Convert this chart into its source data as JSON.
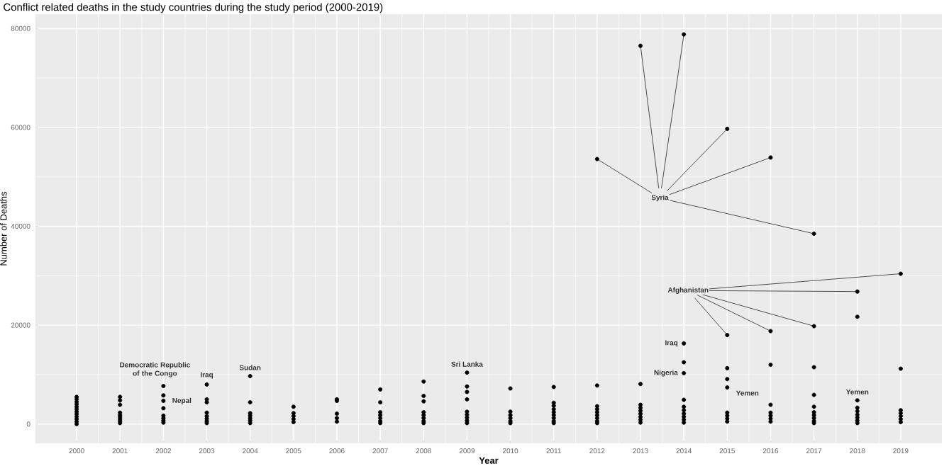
{
  "chart_data": {
    "type": "scatter",
    "title": "Conflict related deaths in the study countries during the study period (2000-2019)",
    "xlabel": "Year",
    "ylabel": "Number of Deaths",
    "xlim": [
      1999.05,
      2019.95
    ],
    "ylim": [
      -3900,
      82900
    ],
    "xticks": [
      2000,
      2001,
      2002,
      2003,
      2004,
      2005,
      2006,
      2007,
      2008,
      2009,
      2010,
      2011,
      2012,
      2013,
      2014,
      2015,
      2016,
      2017,
      2018,
      2019
    ],
    "yticks": [
      0,
      20000,
      40000,
      60000,
      80000
    ],
    "grid": true,
    "marker": "circle",
    "series": [
      {
        "color": "#000000",
        "x": [
          2000,
          2000,
          2000,
          2000,
          2000,
          2000,
          2000,
          2000,
          2000,
          2000,
          2000,
          2000,
          2001,
          2001,
          2001,
          2001,
          2001,
          2001,
          2001,
          2001,
          2001,
          2002,
          2002,
          2002,
          2002,
          2002,
          2002,
          2002,
          2002,
          2003,
          2003,
          2003,
          2003,
          2003,
          2003,
          2003,
          2003,
          2004,
          2004,
          2004,
          2004,
          2004,
          2004,
          2004,
          2005,
          2005,
          2005,
          2005,
          2005,
          2006,
          2006,
          2006,
          2006,
          2006,
          2007,
          2007,
          2007,
          2007,
          2007,
          2007,
          2007,
          2008,
          2008,
          2008,
          2008,
          2008,
          2008,
          2008,
          2008,
          2009,
          2009,
          2009,
          2009,
          2009,
          2009,
          2009,
          2009,
          2009,
          2010,
          2010,
          2010,
          2010,
          2010,
          2010,
          2011,
          2011,
          2011,
          2011,
          2011,
          2011,
          2011,
          2011,
          2011,
          2012,
          2012,
          2012,
          2012,
          2012,
          2012,
          2012,
          2012,
          2013,
          2013,
          2013,
          2013,
          2013,
          2013,
          2013,
          2013,
          2014,
          2014,
          2014,
          2014,
          2014,
          2014,
          2014,
          2014,
          2014,
          2014,
          2015,
          2015,
          2015,
          2015,
          2015,
          2015,
          2015,
          2016,
          2016,
          2016,
          2016,
          2016,
          2016,
          2017,
          2017,
          2017,
          2017,
          2017,
          2017,
          2017,
          2017,
          2018,
          2018,
          2018,
          2018,
          2018,
          2018,
          2018,
          2018,
          2019,
          2019,
          2019,
          2019,
          2019,
          2019
        ],
        "values": [
          5500,
          5000,
          4500,
          4000,
          3500,
          3000,
          2500,
          2000,
          1500,
          1000,
          500,
          0,
          5500,
          4800,
          3900,
          2300,
          1800,
          1400,
          1000,
          600,
          200,
          7700,
          5800,
          4700,
          3200,
          1700,
          1200,
          700,
          300,
          8000,
          5000,
          4400,
          2300,
          1600,
          1100,
          600,
          200,
          9700,
          4400,
          2200,
          1700,
          1200,
          700,
          200,
          3500,
          2200,
          1600,
          1000,
          400,
          5000,
          4700,
          2100,
          1200,
          500,
          7000,
          4400,
          2400,
          1800,
          1200,
          600,
          200,
          8600,
          5700,
          4600,
          2400,
          1800,
          1200,
          600,
          200,
          10400,
          7600,
          6500,
          5000,
          2500,
          1900,
          1300,
          700,
          200,
          7200,
          2500,
          1800,
          1200,
          600,
          200,
          7500,
          4300,
          3700,
          3000,
          2400,
          1800,
          1200,
          600,
          200,
          7800,
          3600,
          3000,
          2400,
          1800,
          1200,
          600,
          200,
          8100,
          3900,
          3300,
          2700,
          2100,
          1500,
          900,
          300,
          16300,
          12500,
          10300,
          4900,
          3500,
          2800,
          2100,
          1500,
          900,
          300,
          11300,
          9100,
          7400,
          2300,
          1700,
          1100,
          500,
          12000,
          3900,
          2300,
          1700,
          1100,
          500,
          11500,
          5900,
          3500,
          2400,
          1800,
          1200,
          600,
          200,
          21700,
          4800,
          3300,
          2600,
          1900,
          1300,
          700,
          200,
          11200,
          2800,
          2200,
          1600,
          1000,
          400
        ]
      },
      {
        "name": "Syria",
        "color": "#000000",
        "x": [
          2012,
          2013,
          2014,
          2015,
          2016,
          2017
        ],
        "values": [
          53600,
          76500,
          78800,
          59700,
          53900,
          38500
        ]
      },
      {
        "name": "Afghanistan",
        "color": "#000000",
        "x": [
          2015,
          2016,
          2017,
          2018,
          2019
        ],
        "values": [
          18000,
          18800,
          19800,
          26800,
          30400
        ]
      }
    ],
    "annotations": [
      {
        "text": "Democratic Republic of the Congo",
        "x": 2002,
        "y": 7700
      },
      {
        "text": "Nepal",
        "x": 2002,
        "y": 5800
      },
      {
        "text": "Iraq",
        "x": 2003,
        "y": 8000
      },
      {
        "text": "Sudan",
        "x": 2004,
        "y": 9700
      },
      {
        "text": "Sri Lanka",
        "x": 2009,
        "y": 10400
      },
      {
        "text": "Iraq",
        "x": 2014,
        "y": 16300
      },
      {
        "text": "Nigeria",
        "x": 2014,
        "y": 10300
      },
      {
        "text": "Yemen",
        "x": 2015,
        "y": 7400
      },
      {
        "text": "Yemen",
        "x": 2018,
        "y": 4800
      }
    ]
  }
}
